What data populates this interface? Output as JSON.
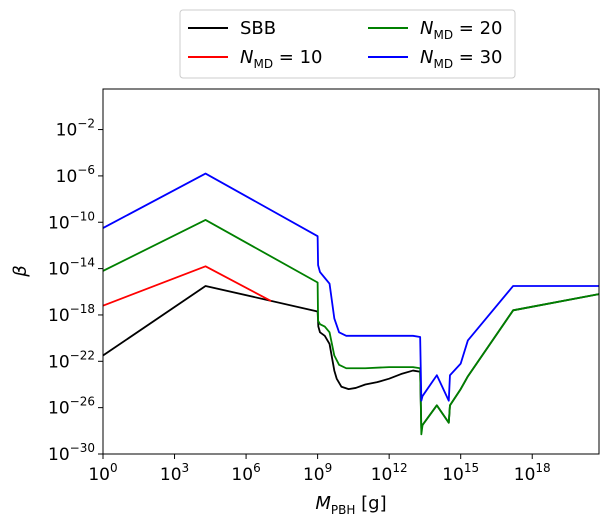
{
  "chart_data": {
    "type": "line",
    "xscale": "log",
    "yscale": "log",
    "xlabel": "M_PBH [g]",
    "ylabel": "β",
    "xlim_log10": [
      0,
      20.8
    ],
    "ylim_log10": [
      -30,
      1.5
    ],
    "grid": false,
    "legend_position": "top-center",
    "x_ticks_log10": [
      0,
      3,
      6,
      9,
      12,
      15,
      18
    ],
    "y_ticks_log10": [
      -30,
      -26,
      -22,
      -18,
      -14,
      -10,
      -6,
      -2
    ],
    "series": [
      {
        "name": "SBB",
        "color": "#000000",
        "log10_x": [
          0,
          4.3,
          9,
          9.03,
          9.1,
          9.3,
          9.5,
          9.7,
          9.8,
          10,
          10.3,
          10.6,
          11,
          11.5,
          12,
          12.5,
          13,
          13.3,
          13.35,
          13.4,
          14,
          14.5,
          14.55,
          15,
          15.3,
          17.2,
          20.8
        ],
        "log10_y": [
          -21.5,
          -15.5,
          -17.7,
          -19,
          -19.5,
          -19.8,
          -20.5,
          -22.8,
          -23.5,
          -24.2,
          -24.4,
          -24.3,
          -24,
          -23.8,
          -23.5,
          -23.1,
          -22.8,
          -22.9,
          -27.8,
          -27.5,
          -25.8,
          -27.3,
          -25.8,
          -24.4,
          -23.3,
          -17.6,
          -16.2
        ]
      },
      {
        "name": "N_MD = 10",
        "color": "#ff0000",
        "log10_x": [
          0,
          4.3,
          7.05
        ],
        "log10_y": [
          -17.2,
          -13.8,
          -16.8
        ]
      },
      {
        "name": "N_MD = 20",
        "color": "#008000",
        "log10_x": [
          0,
          4.3,
          9,
          9.02,
          9.1,
          9.3,
          9.5,
          9.7,
          9.9,
          10.2,
          10.5,
          11,
          12,
          13,
          13.3,
          13.35,
          13.4,
          14,
          14.5,
          14.55,
          15,
          15.3,
          17.2,
          20.8
        ],
        "log10_y": [
          -14.2,
          -9.8,
          -15.2,
          -18.5,
          -18.8,
          -19,
          -19.5,
          -21.5,
          -22.3,
          -22.6,
          -22.6,
          -22.6,
          -22.5,
          -22.5,
          -22.6,
          -28.3,
          -27.5,
          -25.8,
          -27.3,
          -25.8,
          -24.4,
          -23.3,
          -17.6,
          -16.2
        ]
      },
      {
        "name": "N_MD = 30",
        "color": "#0000ff",
        "log10_x": [
          0,
          4.3,
          9,
          9.02,
          9.1,
          9.3,
          9.5,
          9.7,
          9.9,
          10.2,
          10.5,
          11,
          12,
          13,
          13.3,
          13.35,
          13.4,
          14,
          14.5,
          14.55,
          15,
          15.3,
          17.2,
          20.8
        ],
        "log10_y": [
          -10.5,
          -5.8,
          -11.2,
          -13.7,
          -14.3,
          -14.8,
          -15.3,
          -18.3,
          -19.5,
          -19.8,
          -19.8,
          -19.8,
          -19.8,
          -19.8,
          -19.9,
          -25.4,
          -25,
          -23.2,
          -25.4,
          -23.2,
          -22.2,
          -20.2,
          -15.5,
          -15.5
        ]
      }
    ]
  }
}
